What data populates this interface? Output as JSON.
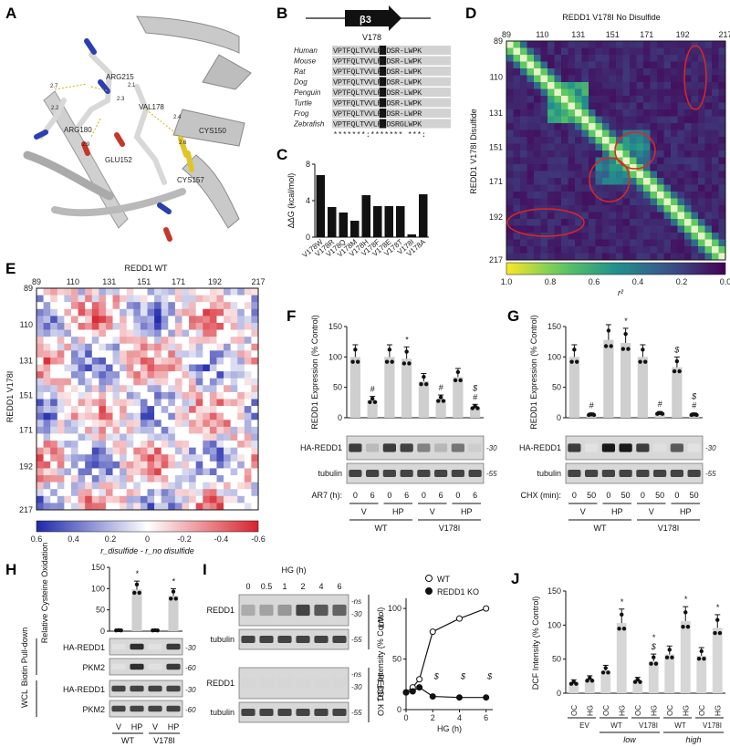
{
  "panels": {
    "A": {
      "letter": "A",
      "residues": [
        "ARG215",
        "VAL178",
        "ARG180",
        "GLU152",
        "CYS150",
        "CYS157"
      ],
      "distances": [
        "2.7",
        "2.2",
        "2.3",
        "2.4",
        "2.1",
        "2.9",
        "2.6"
      ]
    },
    "B": {
      "letter": "B",
      "strand_label": "β3",
      "mutation_label": "V178",
      "species": [
        "Human",
        "Mouse",
        "Rat",
        "Dog",
        "Penguin",
        "Turtle",
        "Frog",
        "Zebrafish"
      ],
      "sequences": [
        "VPTFQLTVVLRLDSR-LWPK",
        "VPTFQLTVVLRLDSR-LWPK",
        "VPTFQLTVVLRLDSR-LWPK",
        "VPTFQLTVVLRLDSR-LWPK",
        "VPTFQLTVVLRLDSR-LWPK",
        "VPTFQLTVVLRLDSR-LWPK",
        "VPTFQLTVVLRLDSR-LWPR",
        "VPTFQLTVVLRLDSRGLWPK"
      ],
      "conservation": "*******:*******  ***:"
    },
    "C": {
      "letter": "C"
    },
    "D": {
      "letter": "D",
      "top_title": "REDD1 V178I No Disulfide",
      "side_title": "REDD1 V178I Disulfide",
      "ticks": [
        "89",
        "110",
        "131",
        "151",
        "171",
        "192",
        "217"
      ],
      "colorbar_ticks": [
        "1.0",
        "0.8",
        "0.6",
        "0.4",
        "0.2",
        "0.0"
      ],
      "colorbar_label": "r²"
    },
    "E": {
      "letter": "E",
      "top_title": "REDD1 WT",
      "side_title": "REDD1 V178I",
      "ticks": [
        "89",
        "110",
        "131",
        "151",
        "171",
        "192",
        "217"
      ],
      "colorbar_ticks": [
        "0.6",
        "0.4",
        "0.2",
        "0",
        "-0.2",
        "-0.4",
        "-0.6"
      ],
      "colorbar_label": "r_disulfide - r_no disulfide"
    },
    "F": {
      "letter": "F",
      "ylabel": "REDD1 Expression (% Control)",
      "yticks": [
        "0",
        "50",
        "100",
        "150"
      ],
      "blot_rows": [
        "HA-REDD1",
        "tubulin"
      ],
      "mw": [
        "-30",
        "-55"
      ],
      "treatment_label": "AR7 (h):",
      "times": [
        "0",
        "6",
        "0",
        "6",
        "0",
        "6",
        "0",
        "6"
      ],
      "groups": [
        "V",
        "HP",
        "V",
        "HP"
      ],
      "genotypes": [
        "WT",
        "V178I"
      ]
    },
    "G": {
      "letter": "G",
      "ylabel": "REDD1 Expression (% Control)",
      "yticks": [
        "0",
        "50",
        "100",
        "150"
      ],
      "blot_rows": [
        "HA-REDD1",
        "tubulin"
      ],
      "mw": [
        "-30",
        "-55"
      ],
      "treatment_label": "CHX (min):",
      "times": [
        "0",
        "50",
        "0",
        "50",
        "0",
        "50",
        "0",
        "50"
      ],
      "groups": [
        "V",
        "HP",
        "V",
        "HP"
      ],
      "genotypes": [
        "WT",
        "V178I"
      ]
    },
    "H": {
      "letter": "H",
      "ylabel": "Relative Cysteine Oxidation",
      "yticks": [
        "0",
        "50",
        "100",
        "150"
      ],
      "section1": "Biotin Pull-down",
      "section2": "WCL",
      "blot_rows": [
        "HA-REDD1",
        "PKM2",
        "HA-REDD1",
        "PKM2"
      ],
      "mw": [
        "-30",
        "-60",
        "-30",
        "-60"
      ],
      "lanes": [
        "V",
        "HP",
        "V",
        "HP"
      ],
      "genotypes": [
        "WT",
        "V178I"
      ]
    },
    "I": {
      "letter": "I",
      "hg_label": "HG (h)",
      "times": [
        "0",
        "0.5",
        "1",
        "2",
        "4",
        "6"
      ],
      "rows": [
        "REDD1",
        "tubulin",
        "REDD1",
        "tubulin"
      ],
      "mw": [
        "-ns",
        "-30",
        "-55",
        "-ns",
        "-30",
        "-55"
      ],
      "side_labels": [
        "WT",
        "REDD1 KO"
      ],
      "legend": [
        "WT",
        "REDD1 KO"
      ],
      "ylabel": "DCF Intensity (% Control)",
      "xlabel": "HG (h)",
      "yticks": [
        "0",
        "50",
        "100"
      ],
      "xticks": [
        "0",
        "2",
        "4",
        "6"
      ],
      "sym": "$"
    },
    "J": {
      "letter": "J",
      "ylabel": "DCF Intensity (% Control)",
      "yticks": [
        "0",
        "50",
        "100",
        "150"
      ],
      "lanes": [
        "OC",
        "HG",
        "OC",
        "HG",
        "OC",
        "HG",
        "OC",
        "HG",
        "OC",
        "HG"
      ],
      "groups": [
        "EV",
        "WT",
        "V178I",
        "WT",
        "V178I"
      ],
      "levels": [
        "low",
        "high"
      ]
    }
  },
  "chart_data": [
    {
      "id": "C",
      "type": "bar",
      "ylabel": "ΔΔG (kcal/mol)",
      "ylim": [
        0,
        8
      ],
      "yticks": [
        0,
        4,
        8
      ],
      "categories": [
        "V178W",
        "V178R",
        "V178Q",
        "V178M",
        "V178H",
        "V178F",
        "V178E",
        "V178T",
        "V178I",
        "V178A"
      ],
      "values": [
        6.8,
        3.3,
        2.7,
        1.8,
        4.6,
        3.4,
        3.4,
        3.4,
        0.3,
        4.7
      ]
    },
    {
      "id": "F",
      "type": "bar",
      "ylim": [
        0,
        150
      ],
      "categories": [
        "0",
        "6",
        "0",
        "6",
        "0",
        "6",
        "0",
        "6"
      ],
      "values": [
        100,
        28,
        100,
        97,
        60,
        30,
        67,
        17
      ],
      "annotations": [
        "",
        "#",
        "",
        "*",
        "",
        "#",
        "",
        "$ #"
      ]
    },
    {
      "id": "G",
      "type": "bar",
      "ylim": [
        0,
        150
      ],
      "categories": [
        "0",
        "50",
        "0",
        "50",
        "0",
        "50",
        "0",
        "50"
      ],
      "values": [
        100,
        5,
        128,
        123,
        100,
        7,
        83,
        5
      ],
      "annotations": [
        "",
        "#",
        "",
        "*",
        "",
        "#",
        "$",
        "$ #"
      ]
    },
    {
      "id": "H",
      "type": "bar",
      "ylim": [
        0,
        150
      ],
      "categories": [
        "V",
        "HP",
        "V",
        "HP"
      ],
      "values": [
        2,
        98,
        2,
        83
      ],
      "annotations": [
        "",
        "*",
        "",
        "*"
      ]
    },
    {
      "id": "I",
      "type": "line",
      "xlabel": "HG (h)",
      "ylabel": "DCF Intensity (% Control)",
      "xlim": [
        0,
        6.5
      ],
      "ylim": [
        0,
        110
      ],
      "x": [
        0,
        0.5,
        1,
        2,
        4,
        6
      ],
      "series": [
        {
          "name": "WT",
          "values": [
            17,
            22,
            30,
            77,
            90,
            100
          ]
        },
        {
          "name": "REDD1 KO",
          "values": [
            17,
            18,
            22,
            13,
            12,
            12
          ]
        }
      ],
      "annotations": [
        "$",
        "$",
        "$"
      ]
    },
    {
      "id": "J",
      "type": "bar",
      "ylim": [
        0,
        150
      ],
      "categories": [
        "OC",
        "HG",
        "OC",
        "HG",
        "OC",
        "HG",
        "OC",
        "HG",
        "OC",
        "HG"
      ],
      "values": [
        15,
        20,
        33,
        103,
        18,
        47,
        57,
        106,
        55,
        96
      ],
      "annotations": [
        "",
        "",
        "",
        "*",
        "",
        "* $",
        "",
        "*",
        "",
        "*"
      ]
    }
  ]
}
